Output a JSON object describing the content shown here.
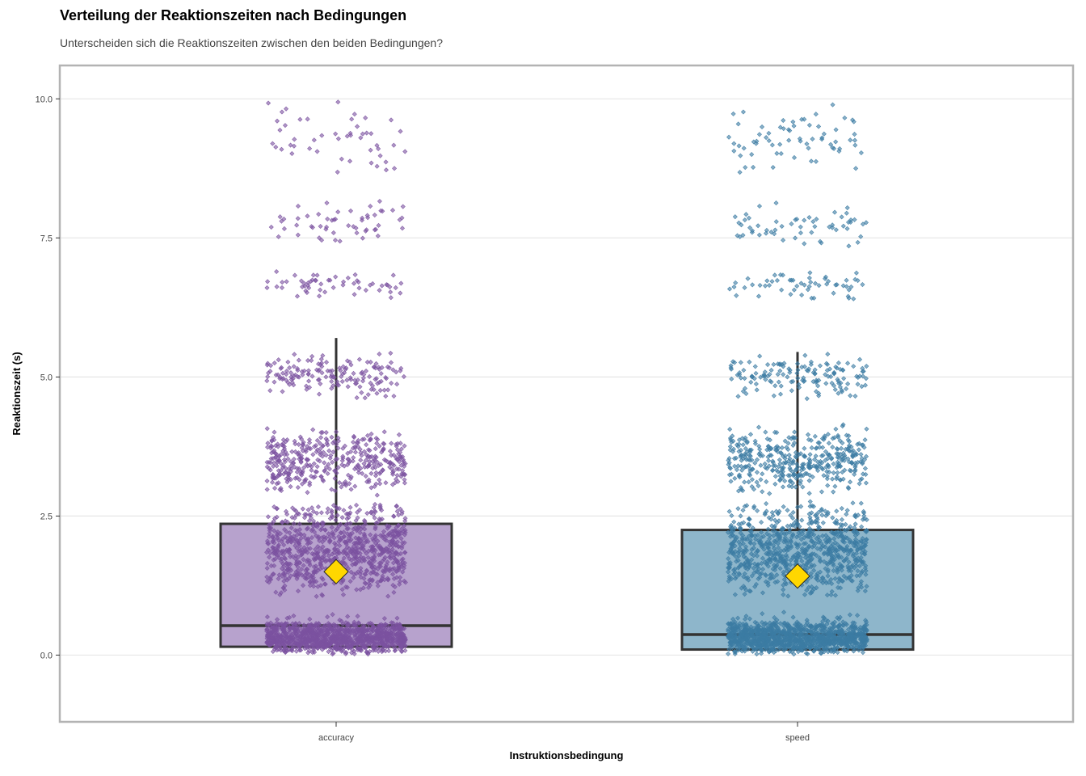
{
  "chart_data": {
    "type": "boxplot",
    "title": "Verteilung der Reaktionszeiten nach Bedingungen",
    "subtitle": "Unterscheiden sich die Reaktionszeiten zwischen den beiden Bedingungen?",
    "xlabel": "Instruktionsbedingung",
    "ylabel": "Reaktionszeit (s)",
    "ylim": [
      -1.2,
      10.6
    ],
    "yticks": [
      0,
      2.5,
      5,
      7.5,
      10
    ],
    "ytick_labels": [
      "0.0",
      "2.5",
      "5.0",
      "7.5",
      "10.0"
    ],
    "grid": "horizontal",
    "categories": [
      "accuracy",
      "speed"
    ],
    "boxes": [
      {
        "category": "accuracy",
        "q1": 0.15,
        "median": 0.53,
        "q3": 2.36,
        "whisker_low": 0.0,
        "whisker_high": 5.7,
        "mean": 1.5,
        "fill": "#b7a2cd",
        "point_color": "#7b52a0"
      },
      {
        "category": "speed",
        "q1": 0.1,
        "median": 0.37,
        "q3": 2.25,
        "whisker_low": 0.0,
        "whisker_high": 5.45,
        "mean": 1.42,
        "fill": "#8eb6cb",
        "point_color": "#3c7ca3"
      }
    ],
    "mean_marker_color": "#ffd700",
    "jitter_bands": [
      {
        "center": 0.3,
        "spread": 0.3,
        "weight": 50
      },
      {
        "center": 0.55,
        "spread": 0.25,
        "weight": 4
      },
      {
        "center": 1.9,
        "spread": 0.9,
        "weight": 42
      },
      {
        "center": 3.5,
        "spread": 0.65,
        "weight": 20
      },
      {
        "center": 5.05,
        "spread": 0.45,
        "weight": 7
      },
      {
        "center": 6.65,
        "spread": 0.3,
        "weight": 2.5
      },
      {
        "center": 7.75,
        "spread": 0.45,
        "weight": 2.5
      },
      {
        "center": 9.3,
        "spread": 0.7,
        "weight": 3
      }
    ]
  }
}
